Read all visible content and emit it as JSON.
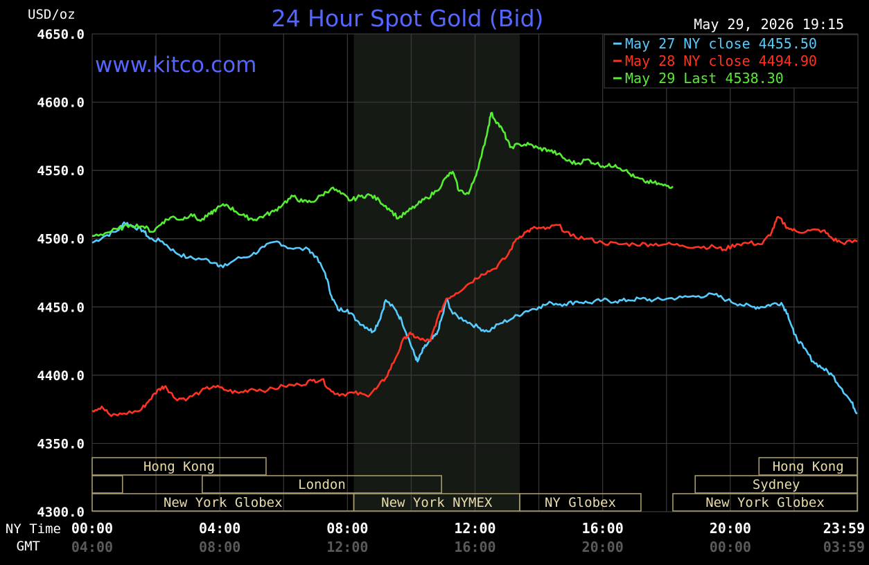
{
  "chart_data": {
    "type": "line",
    "title": "24 Hour Spot Gold (Bid)",
    "ylabel": "USD/oz",
    "watermark": "www.kitco.com",
    "timestamp": "May 29, 2026 19:15",
    "xlim_hours": [
      0,
      24
    ],
    "ylim": [
      4300,
      4650
    ],
    "y_ticks": [
      "4650.0",
      "4600.0",
      "4550.0",
      "4500.0",
      "4450.0",
      "4400.0",
      "4350.0",
      "4300.0"
    ],
    "x_row_labels": [
      "NY Time",
      "GMT"
    ],
    "x_ticks": [
      {
        "x": 0,
        "ny": "00:00",
        "gmt": "04:00"
      },
      {
        "x": 4,
        "ny": "04:00",
        "gmt": "08:00"
      },
      {
        "x": 8,
        "ny": "08:00",
        "gmt": "12:00"
      },
      {
        "x": 12,
        "ny": "12:00",
        "gmt": "16:00"
      },
      {
        "x": 16,
        "ny": "16:00",
        "gmt": "20:00"
      },
      {
        "x": 20,
        "ny": "20:00",
        "gmt": "00:00"
      },
      {
        "x": 23.98,
        "ny": "23:59",
        "gmt": "03:59"
      }
    ],
    "shaded_region_hours": [
      8.2,
      13.4
    ],
    "grid": true,
    "legend_position": "top-right",
    "series": [
      {
        "name": "May 27 NY close 4455.50",
        "color": "#55ccff",
        "points": [
          [
            0,
            4497
          ],
          [
            0.4,
            4502
          ],
          [
            0.8,
            4506
          ],
          [
            1.0,
            4512
          ],
          [
            1.3,
            4509
          ],
          [
            1.6,
            4506
          ],
          [
            1.8,
            4500
          ],
          [
            2.2,
            4498
          ],
          [
            2.6,
            4490
          ],
          [
            3.0,
            4486
          ],
          [
            3.5,
            4485
          ],
          [
            3.9,
            4482
          ],
          [
            4.1,
            4479
          ],
          [
            4.5,
            4485
          ],
          [
            5.0,
            4488
          ],
          [
            5.4,
            4494
          ],
          [
            5.8,
            4498
          ],
          [
            6.2,
            4493
          ],
          [
            6.8,
            4492
          ],
          [
            7.0,
            4487
          ],
          [
            7.3,
            4475
          ],
          [
            7.5,
            4458
          ],
          [
            7.7,
            4448
          ],
          [
            8.0,
            4448
          ],
          [
            8.3,
            4440
          ],
          [
            8.6,
            4435
          ],
          [
            8.8,
            4432
          ],
          [
            9.0,
            4440
          ],
          [
            9.2,
            4455
          ],
          [
            9.5,
            4448
          ],
          [
            9.7,
            4440
          ],
          [
            9.9,
            4428
          ],
          [
            10.1,
            4415
          ],
          [
            10.2,
            4410
          ],
          [
            10.4,
            4420
          ],
          [
            10.6,
            4425
          ],
          [
            10.8,
            4430
          ],
          [
            11.0,
            4445
          ],
          [
            11.1,
            4456
          ],
          [
            11.3,
            4445
          ],
          [
            11.7,
            4440
          ],
          [
            12.1,
            4435
          ],
          [
            12.4,
            4432
          ],
          [
            12.8,
            4438
          ],
          [
            13.2,
            4442
          ],
          [
            13.6,
            4447
          ],
          [
            14.0,
            4450
          ],
          [
            14.4,
            4453
          ],
          [
            14.8,
            4452
          ],
          [
            15.2,
            4454
          ],
          [
            15.6,
            4453
          ],
          [
            16.0,
            4455
          ],
          [
            16.4,
            4454
          ],
          [
            16.8,
            4455
          ],
          [
            17.2,
            4456
          ],
          [
            17.6,
            4455
          ],
          [
            18.0,
            4456
          ],
          [
            18.5,
            4457
          ],
          [
            19.0,
            4458
          ],
          [
            19.5,
            4459
          ],
          [
            19.9,
            4455
          ],
          [
            20.3,
            4452
          ],
          [
            20.7,
            4450
          ],
          [
            21.0,
            4450
          ],
          [
            21.3,
            4452
          ],
          [
            21.6,
            4453
          ],
          [
            21.8,
            4445
          ],
          [
            22.0,
            4430
          ],
          [
            22.3,
            4420
          ],
          [
            22.6,
            4410
          ],
          [
            22.9,
            4405
          ],
          [
            23.2,
            4400
          ],
          [
            23.5,
            4390
          ],
          [
            23.8,
            4380
          ],
          [
            23.98,
            4372
          ]
        ]
      },
      {
        "name": "May 28 NY close 4494.90",
        "color": "#ff3322",
        "points": [
          [
            0,
            4374
          ],
          [
            0.3,
            4377
          ],
          [
            0.6,
            4370
          ],
          [
            1.0,
            4372
          ],
          [
            1.5,
            4374
          ],
          [
            1.8,
            4382
          ],
          [
            2.1,
            4390
          ],
          [
            2.3,
            4392
          ],
          [
            2.6,
            4383
          ],
          [
            3.0,
            4383
          ],
          [
            3.4,
            4388
          ],
          [
            3.8,
            4392
          ],
          [
            4.2,
            4389
          ],
          [
            4.6,
            4387
          ],
          [
            5.0,
            4390
          ],
          [
            5.5,
            4389
          ],
          [
            6.0,
            4392
          ],
          [
            6.5,
            4393
          ],
          [
            6.9,
            4396
          ],
          [
            7.2,
            4397
          ],
          [
            7.5,
            4388
          ],
          [
            7.8,
            4386
          ],
          [
            8.2,
            4387
          ],
          [
            8.6,
            4385
          ],
          [
            8.9,
            4390
          ],
          [
            9.2,
            4398
          ],
          [
            9.5,
            4412
          ],
          [
            9.8,
            4428
          ],
          [
            10.0,
            4430
          ],
          [
            10.3,
            4426
          ],
          [
            10.6,
            4425
          ],
          [
            10.8,
            4440
          ],
          [
            11.1,
            4456
          ],
          [
            11.4,
            4460
          ],
          [
            11.8,
            4467
          ],
          [
            12.2,
            4474
          ],
          [
            12.6,
            4478
          ],
          [
            13.0,
            4487
          ],
          [
            13.3,
            4500
          ],
          [
            13.6,
            4505
          ],
          [
            13.9,
            4508
          ],
          [
            14.2,
            4507
          ],
          [
            14.6,
            4510
          ],
          [
            15.0,
            4502
          ],
          [
            15.5,
            4500
          ],
          [
            16.0,
            4497
          ],
          [
            16.5,
            4496
          ],
          [
            17.0,
            4496
          ],
          [
            17.5,
            4496
          ],
          [
            18.0,
            4496
          ],
          [
            18.5,
            4495
          ],
          [
            19.0,
            4494
          ],
          [
            19.5,
            4494
          ],
          [
            19.8,
            4492
          ],
          [
            20.2,
            4496
          ],
          [
            20.6,
            4497
          ],
          [
            21.0,
            4496
          ],
          [
            21.3,
            4505
          ],
          [
            21.5,
            4516
          ],
          [
            21.8,
            4508
          ],
          [
            22.1,
            4505
          ],
          [
            22.5,
            4506
          ],
          [
            22.9,
            4506
          ],
          [
            23.2,
            4500
          ],
          [
            23.5,
            4497
          ],
          [
            23.98,
            4498
          ]
        ]
      },
      {
        "name": "May 29 Last 4538.30",
        "color": "#55ee33",
        "points": [
          [
            0,
            4502
          ],
          [
            0.4,
            4504
          ],
          [
            0.8,
            4507
          ],
          [
            1.2,
            4510
          ],
          [
            1.6,
            4509
          ],
          [
            1.9,
            4505
          ],
          [
            2.2,
            4512
          ],
          [
            2.5,
            4516
          ],
          [
            2.8,
            4514
          ],
          [
            3.1,
            4518
          ],
          [
            3.4,
            4513
          ],
          [
            3.7,
            4518
          ],
          [
            3.9,
            4522
          ],
          [
            4.2,
            4525
          ],
          [
            4.5,
            4520
          ],
          [
            4.8,
            4516
          ],
          [
            5.1,
            4514
          ],
          [
            5.4,
            4517
          ],
          [
            5.7,
            4520
          ],
          [
            6.0,
            4526
          ],
          [
            6.3,
            4531
          ],
          [
            6.6,
            4527
          ],
          [
            6.9,
            4527
          ],
          [
            7.2,
            4532
          ],
          [
            7.5,
            4537
          ],
          [
            7.8,
            4533
          ],
          [
            8.1,
            4528
          ],
          [
            8.4,
            4531
          ],
          [
            8.7,
            4532
          ],
          [
            9.0,
            4528
          ],
          [
            9.3,
            4522
          ],
          [
            9.6,
            4515
          ],
          [
            9.9,
            4520
          ],
          [
            10.2,
            4525
          ],
          [
            10.5,
            4530
          ],
          [
            10.8,
            4535
          ],
          [
            11.1,
            4545
          ],
          [
            11.3,
            4549
          ],
          [
            11.5,
            4535
          ],
          [
            11.8,
            4533
          ],
          [
            12.0,
            4545
          ],
          [
            12.2,
            4560
          ],
          [
            12.4,
            4580
          ],
          [
            12.5,
            4592
          ],
          [
            12.7,
            4585
          ],
          [
            12.9,
            4578
          ],
          [
            13.1,
            4567
          ],
          [
            13.4,
            4569
          ],
          [
            13.7,
            4569
          ],
          [
            14.0,
            4566
          ],
          [
            14.3,
            4565
          ],
          [
            14.6,
            4562
          ],
          [
            14.9,
            4557
          ],
          [
            15.2,
            4555
          ],
          [
            15.5,
            4558
          ],
          [
            15.8,
            4555
          ],
          [
            16.1,
            4553
          ],
          [
            16.4,
            4554
          ],
          [
            16.7,
            4550
          ],
          [
            17.0,
            4545
          ],
          [
            17.3,
            4542
          ],
          [
            17.6,
            4541
          ],
          [
            17.9,
            4539
          ],
          [
            18.2,
            4538.3
          ]
        ]
      }
    ],
    "sessions": [
      {
        "label": "Hong Kong",
        "row": 0,
        "start": 0,
        "end": 5.45
      },
      {
        "label": "",
        "row": 1,
        "start": 0,
        "end": 0.95
      },
      {
        "label": "London",
        "row": 1,
        "start": 3.45,
        "end": 10.95
      },
      {
        "label": "New York Globex",
        "row": 2,
        "start": 0,
        "end": 8.2
      },
      {
        "label": "New York NYMEX",
        "row": 2,
        "start": 8.2,
        "end": 13.4
      },
      {
        "label": "NY Globex",
        "row": 2,
        "start": 13.4,
        "end": 17.2
      },
      {
        "label": "Hong Kong",
        "row": 0,
        "start": 20.9,
        "end": 23.98
      },
      {
        "label": "Sydney",
        "row": 1,
        "start": 18.9,
        "end": 23.98
      },
      {
        "label": "New York Globex",
        "row": 2,
        "start": 18.2,
        "end": 23.98
      }
    ]
  }
}
